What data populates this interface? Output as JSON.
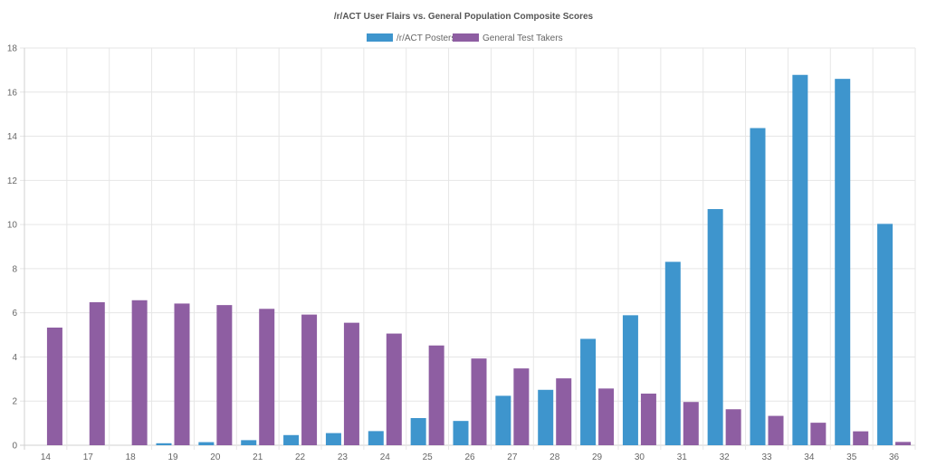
{
  "chart_data": {
    "type": "bar",
    "title": "/r/ACT User Flairs vs. General Population Composite Scores",
    "xlabel": "",
    "ylabel": "",
    "ylim": [
      0,
      18
    ],
    "ytick_step": 2,
    "grid": true,
    "legend_position": "top",
    "categories": [
      "14",
      "17",
      "18",
      "19",
      "20",
      "21",
      "22",
      "23",
      "24",
      "25",
      "26",
      "27",
      "28",
      "29",
      "30",
      "31",
      "32",
      "33",
      "34",
      "35",
      "36"
    ],
    "series": [
      {
        "name": "/r/ACT Posters",
        "color": "#3e95cd",
        "values": [
          0,
          0,
          0,
          0.09,
          0.14,
          0.23,
          0.46,
          0.55,
          0.64,
          1.23,
          1.1,
          2.24,
          2.51,
          4.82,
          5.89,
          8.31,
          10.7,
          14.37,
          16.78,
          16.6,
          10.03
        ]
      },
      {
        "name": "General Test Takers",
        "color": "#8e5ea2",
        "values": [
          5.33,
          6.48,
          6.57,
          6.42,
          6.35,
          6.18,
          5.92,
          5.55,
          5.06,
          4.52,
          3.93,
          3.48,
          3.03,
          2.57,
          2.34,
          1.96,
          1.63,
          1.33,
          1.02,
          0.63,
          0.15
        ]
      }
    ]
  }
}
